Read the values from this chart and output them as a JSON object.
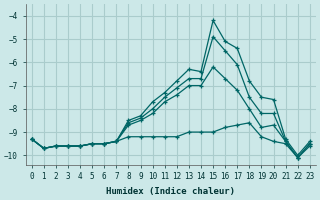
{
  "xlabel": "Humidex (Indice chaleur)",
  "background_color": "#cce8e8",
  "grid_color": "#aacccc",
  "line_color": "#006666",
  "xlim": [
    -0.5,
    23.5
  ],
  "ylim": [
    -10.4,
    -3.5
  ],
  "yticks": [
    -10,
    -9,
    -8,
    -7,
    -6,
    -5,
    -4
  ],
  "xticks": [
    0,
    1,
    2,
    3,
    4,
    5,
    6,
    7,
    8,
    9,
    10,
    11,
    12,
    13,
    14,
    15,
    16,
    17,
    18,
    19,
    20,
    21,
    22,
    23
  ],
  "series": [
    [
      -9.3,
      -9.7,
      -9.6,
      -9.6,
      -9.6,
      -9.5,
      -9.5,
      -9.4,
      -8.5,
      -8.3,
      -7.7,
      -7.3,
      -6.8,
      -6.3,
      -6.4,
      -4.2,
      -5.1,
      -5.4,
      -6.8,
      -7.5,
      -7.6,
      -9.3,
      -10.0,
      -9.4
    ],
    [
      -9.3,
      -9.7,
      -9.6,
      -9.6,
      -9.6,
      -9.5,
      -9.5,
      -9.4,
      -8.6,
      -8.4,
      -8.0,
      -7.5,
      -7.1,
      -6.7,
      -6.7,
      -4.9,
      -5.5,
      -6.1,
      -7.5,
      -8.2,
      -8.2,
      -9.4,
      -10.1,
      -9.5
    ],
    [
      -9.3,
      -9.7,
      -9.6,
      -9.6,
      -9.6,
      -9.5,
      -9.5,
      -9.4,
      -8.7,
      -8.5,
      -8.2,
      -7.7,
      -7.4,
      -7.0,
      -7.0,
      -6.2,
      -6.7,
      -7.2,
      -8.0,
      -8.8,
      -8.7,
      -9.4,
      -10.1,
      -9.5
    ],
    [
      -9.3,
      -9.7,
      -9.6,
      -9.6,
      -9.6,
      -9.5,
      -9.5,
      -9.4,
      -9.2,
      -9.2,
      -9.2,
      -9.2,
      -9.2,
      -9.0,
      -9.0,
      -9.0,
      -8.8,
      -8.7,
      -8.6,
      -9.2,
      -9.4,
      -9.5,
      -10.1,
      -9.6
    ]
  ]
}
